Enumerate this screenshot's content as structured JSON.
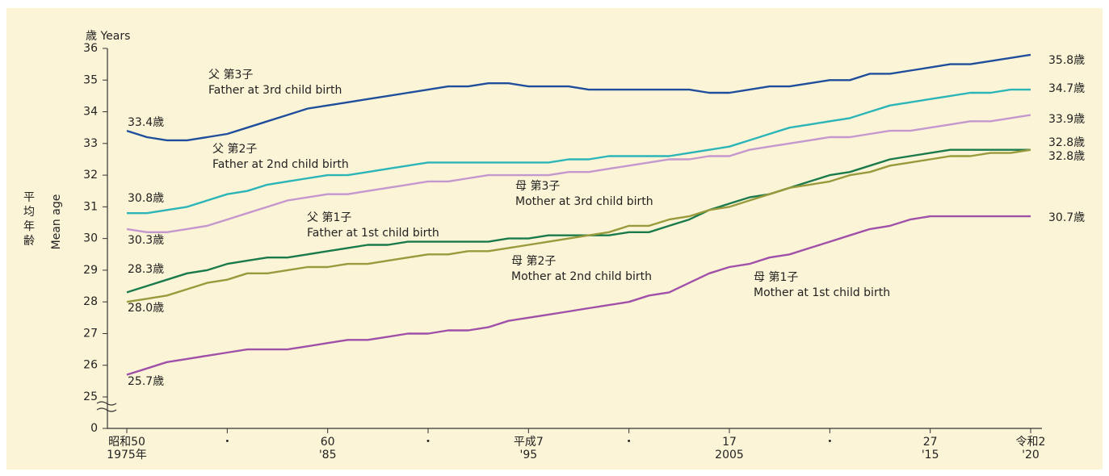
{
  "chart_data": {
    "type": "line",
    "y_unit_label": "歳 Years",
    "y_title_ja": "平均年齢",
    "y_title_en": "Mean age",
    "x": [
      1975,
      1976,
      1977,
      1978,
      1979,
      1980,
      1981,
      1982,
      1983,
      1984,
      1985,
      1986,
      1987,
      1988,
      1989,
      1990,
      1991,
      1992,
      1993,
      1994,
      1995,
      1996,
      1997,
      1998,
      1999,
      2000,
      2001,
      2002,
      2003,
      2004,
      2005,
      2006,
      2007,
      2008,
      2009,
      2010,
      2011,
      2012,
      2013,
      2014,
      2015,
      2016,
      2017,
      2018,
      2019,
      2020
    ],
    "xlim": [
      1975,
      2020
    ],
    "xticks": [
      {
        "value": 1975,
        "label": "昭和50"
      },
      {
        "value": 1980,
        "label": "・"
      },
      {
        "value": 1985,
        "label": "60"
      },
      {
        "value": 1990,
        "label": "・"
      },
      {
        "value": 1995,
        "label": "平成7"
      },
      {
        "value": 2000,
        "label": "・"
      },
      {
        "value": 2005,
        "label": "17"
      },
      {
        "value": 2010,
        "label": "・"
      },
      {
        "value": 2015,
        "label": "27"
      },
      {
        "value": 2020,
        "label": "令和2"
      }
    ],
    "xtick_labels_2": [
      "1975年",
      null,
      "'85",
      null,
      "'95",
      null,
      "2005",
      null,
      "'15",
      "'20"
    ],
    "ylim": [
      25,
      36
    ],
    "yticks": [
      0,
      25,
      26,
      27,
      28,
      29,
      30,
      31,
      32,
      33,
      34,
      35,
      36
    ],
    "axis_break": true,
    "series": [
      {
        "name": "父 第3子",
        "name_en": "Father at 3rd child birth",
        "color": "#1f4e9c",
        "values": [
          33.4,
          33.2,
          33.1,
          33.1,
          33.2,
          33.3,
          33.5,
          33.7,
          33.9,
          34.1,
          34.2,
          34.3,
          34.4,
          34.5,
          34.6,
          34.7,
          34.8,
          34.8,
          34.9,
          34.9,
          34.8,
          34.8,
          34.8,
          34.7,
          34.7,
          34.7,
          34.7,
          34.7,
          34.7,
          34.6,
          34.6,
          34.7,
          34.8,
          34.8,
          34.9,
          35.0,
          35.0,
          35.2,
          35.2,
          35.3,
          35.4,
          35.5,
          35.5,
          35.6,
          35.7,
          35.8
        ],
        "value_labels": [
          "33.4歳",
          null,
          null,
          null,
          null,
          null,
          null,
          null,
          null,
          null,
          null,
          null,
          null,
          null,
          null,
          null,
          null,
          null,
          null,
          null,
          null,
          null,
          null,
          null,
          null,
          null,
          null,
          null,
          null,
          null,
          null,
          null,
          null,
          null,
          null,
          null,
          null,
          null,
          null,
          null,
          null,
          null,
          null,
          null,
          null,
          "35.8歳"
        ]
      },
      {
        "name": "父 第2子",
        "name_en": "Father at 2nd child birth",
        "color": "#2bb5b8",
        "values": [
          30.8,
          30.8,
          30.9,
          31.0,
          31.2,
          31.4,
          31.5,
          31.7,
          31.8,
          31.9,
          32.0,
          32.0,
          32.1,
          32.2,
          32.3,
          32.4,
          32.4,
          32.4,
          32.4,
          32.4,
          32.4,
          32.4,
          32.5,
          32.5,
          32.6,
          32.6,
          32.6,
          32.6,
          32.7,
          32.8,
          32.9,
          33.1,
          33.3,
          33.5,
          33.6,
          33.7,
          33.8,
          34.0,
          34.2,
          34.3,
          34.4,
          34.5,
          34.6,
          34.6,
          34.7,
          34.7
        ],
        "value_labels": [
          "30.8歳",
          null,
          null,
          null,
          null,
          null,
          null,
          null,
          null,
          null,
          null,
          null,
          null,
          null,
          null,
          null,
          null,
          null,
          null,
          null,
          null,
          null,
          null,
          null,
          null,
          null,
          null,
          null,
          null,
          null,
          null,
          null,
          null,
          null,
          null,
          null,
          null,
          null,
          null,
          null,
          null,
          null,
          null,
          null,
          null,
          "34.7歳"
        ]
      },
      {
        "name": "母 第3子",
        "name_en": "Mother at 3rd child birth",
        "color": "#c597cf",
        "values": [
          30.3,
          30.2,
          30.2,
          30.3,
          30.4,
          30.6,
          30.8,
          31.0,
          31.2,
          31.3,
          31.4,
          31.4,
          31.5,
          31.6,
          31.7,
          31.8,
          31.8,
          31.9,
          32.0,
          32.0,
          32.0,
          32.0,
          32.1,
          32.1,
          32.2,
          32.3,
          32.4,
          32.5,
          32.5,
          32.6,
          32.6,
          32.8,
          32.9,
          33.0,
          33.1,
          33.2,
          33.2,
          33.3,
          33.4,
          33.4,
          33.5,
          33.6,
          33.7,
          33.7,
          33.8,
          33.9
        ],
        "value_labels": [
          "30.3歳",
          null,
          null,
          null,
          null,
          null,
          null,
          null,
          null,
          null,
          null,
          null,
          null,
          null,
          null,
          null,
          null,
          null,
          null,
          null,
          null,
          null,
          null,
          null,
          null,
          null,
          null,
          null,
          null,
          null,
          null,
          null,
          null,
          null,
          null,
          null,
          null,
          null,
          null,
          null,
          null,
          null,
          null,
          null,
          null,
          "33.9歳"
        ]
      },
      {
        "name": "父 第1子",
        "name_en": "Father at 1st child birth",
        "color": "#1a7a4c",
        "values": [
          28.3,
          28.5,
          28.7,
          28.9,
          29.0,
          29.2,
          29.3,
          29.4,
          29.4,
          29.5,
          29.6,
          29.7,
          29.8,
          29.8,
          29.9,
          29.9,
          29.9,
          29.9,
          29.9,
          30.0,
          30.0,
          30.1,
          30.1,
          30.1,
          30.1,
          30.2,
          30.2,
          30.4,
          30.6,
          30.9,
          31.1,
          31.3,
          31.4,
          31.6,
          31.8,
          32.0,
          32.1,
          32.3,
          32.5,
          32.6,
          32.7,
          32.8,
          32.8,
          32.8,
          32.8,
          32.8
        ],
        "value_labels": [
          "28.3歳",
          null,
          null,
          null,
          null,
          null,
          null,
          null,
          null,
          null,
          null,
          null,
          null,
          null,
          null,
          null,
          null,
          null,
          null,
          null,
          null,
          null,
          null,
          null,
          null,
          null,
          null,
          null,
          null,
          null,
          null,
          null,
          null,
          null,
          null,
          null,
          null,
          null,
          null,
          null,
          null,
          null,
          null,
          null,
          null,
          "32.8歳"
        ]
      },
      {
        "name": "母 第2子",
        "name_en": "Mother at 2nd child birth",
        "color": "#9a9a3c",
        "values": [
          28.0,
          28.1,
          28.2,
          28.4,
          28.6,
          28.7,
          28.9,
          28.9,
          29.0,
          29.1,
          29.1,
          29.2,
          29.2,
          29.3,
          29.4,
          29.5,
          29.5,
          29.6,
          29.6,
          29.7,
          29.8,
          29.9,
          30.0,
          30.1,
          30.2,
          30.4,
          30.4,
          30.6,
          30.7,
          30.9,
          31.0,
          31.2,
          31.4,
          31.6,
          31.7,
          31.8,
          32.0,
          32.1,
          32.3,
          32.4,
          32.5,
          32.6,
          32.6,
          32.7,
          32.7,
          32.8
        ],
        "value_labels": [
          "28.0歳",
          null,
          null,
          null,
          null,
          null,
          null,
          null,
          null,
          null,
          null,
          null,
          null,
          null,
          null,
          null,
          null,
          null,
          null,
          null,
          null,
          null,
          null,
          null,
          null,
          null,
          null,
          null,
          null,
          null,
          null,
          null,
          null,
          null,
          null,
          null,
          null,
          null,
          null,
          null,
          null,
          null,
          null,
          null,
          null,
          "32.8歳"
        ]
      },
      {
        "name": "母 第1子",
        "name_en": "Mother at 1st child birth",
        "color": "#a050a8",
        "values": [
          25.7,
          25.9,
          26.1,
          26.2,
          26.3,
          26.4,
          26.5,
          26.5,
          26.5,
          26.6,
          26.7,
          26.8,
          26.8,
          26.9,
          27.0,
          27.0,
          27.1,
          27.1,
          27.2,
          27.4,
          27.5,
          27.6,
          27.7,
          27.8,
          27.9,
          28.0,
          28.2,
          28.3,
          28.6,
          28.9,
          29.1,
          29.2,
          29.4,
          29.5,
          29.7,
          29.9,
          30.1,
          30.3,
          30.4,
          30.6,
          30.7,
          30.7,
          30.7,
          30.7,
          30.7,
          30.7
        ],
        "value_labels": [
          "25.7歳",
          null,
          null,
          null,
          null,
          null,
          null,
          null,
          null,
          null,
          null,
          null,
          null,
          null,
          null,
          null,
          null,
          null,
          null,
          null,
          null,
          null,
          null,
          null,
          null,
          null,
          null,
          null,
          null,
          null,
          null,
          null,
          null,
          null,
          null,
          null,
          null,
          null,
          null,
          null,
          null,
          null,
          null,
          null,
          null,
          "30.7歳"
        ]
      }
    ]
  }
}
